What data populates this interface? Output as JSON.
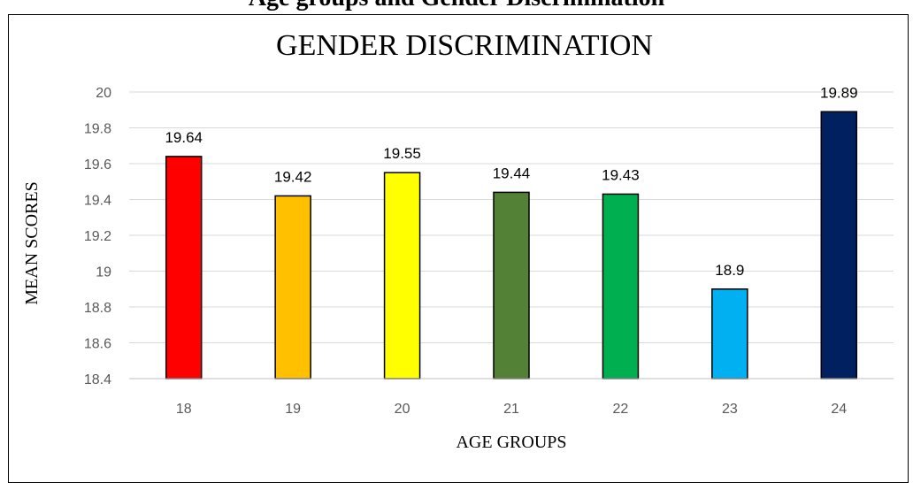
{
  "heading": "Age groups and Gender Discrimination",
  "chart_data": {
    "type": "bar",
    "title": "GENDER DISCRIMINATION",
    "xlabel": "AGE GROUPS",
    "ylabel": "MEAN SCORES",
    "categories": [
      "18",
      "19",
      "20",
      "21",
      "22",
      "23",
      "24"
    ],
    "values": [
      19.64,
      19.42,
      19.55,
      19.44,
      19.43,
      18.9,
      19.89
    ],
    "data_labels": [
      "19.64",
      "19.42",
      "19.55",
      "19.44",
      "19.43",
      "18.9",
      "19.89"
    ],
    "bar_colors": [
      "#FF0000",
      "#FFC000",
      "#FFFF00",
      "#538135",
      "#00B050",
      "#00B0F0",
      "#002060"
    ],
    "ylim": [
      18.4,
      20
    ],
    "yticks": [
      "18.4",
      "18.6",
      "18.8",
      "19",
      "19.2",
      "19.4",
      "19.6",
      "19.8",
      "20"
    ],
    "grid": true,
    "legend": "none"
  }
}
